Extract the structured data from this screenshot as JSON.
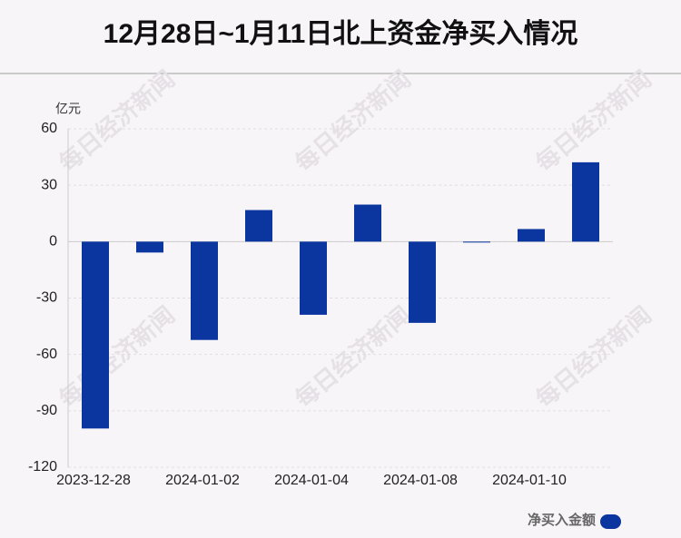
{
  "chart_data": {
    "type": "bar",
    "title": "12月28日~1月11日北上资金净买入情况",
    "y_unit": "亿元",
    "watermark": "每日经济新闻",
    "categories": [
      "2023-12-28",
      null,
      "2024-01-02",
      null,
      "2024-01-04",
      null,
      "2024-01-08",
      null,
      "2024-01-10",
      null
    ],
    "series": [
      {
        "name": "净买入金额",
        "color": "#0b36a0",
        "values": [
          -99.4,
          -5.8,
          -52.3,
          16.8,
          -38.9,
          19.7,
          -43.2,
          -0.3,
          6.7,
          42.2
        ]
      }
    ],
    "ylim": [
      -120,
      60
    ],
    "yticks": [
      -120,
      -90,
      -60,
      -30,
      0,
      30,
      60
    ],
    "grid": true,
    "legend": "bottom-right"
  }
}
